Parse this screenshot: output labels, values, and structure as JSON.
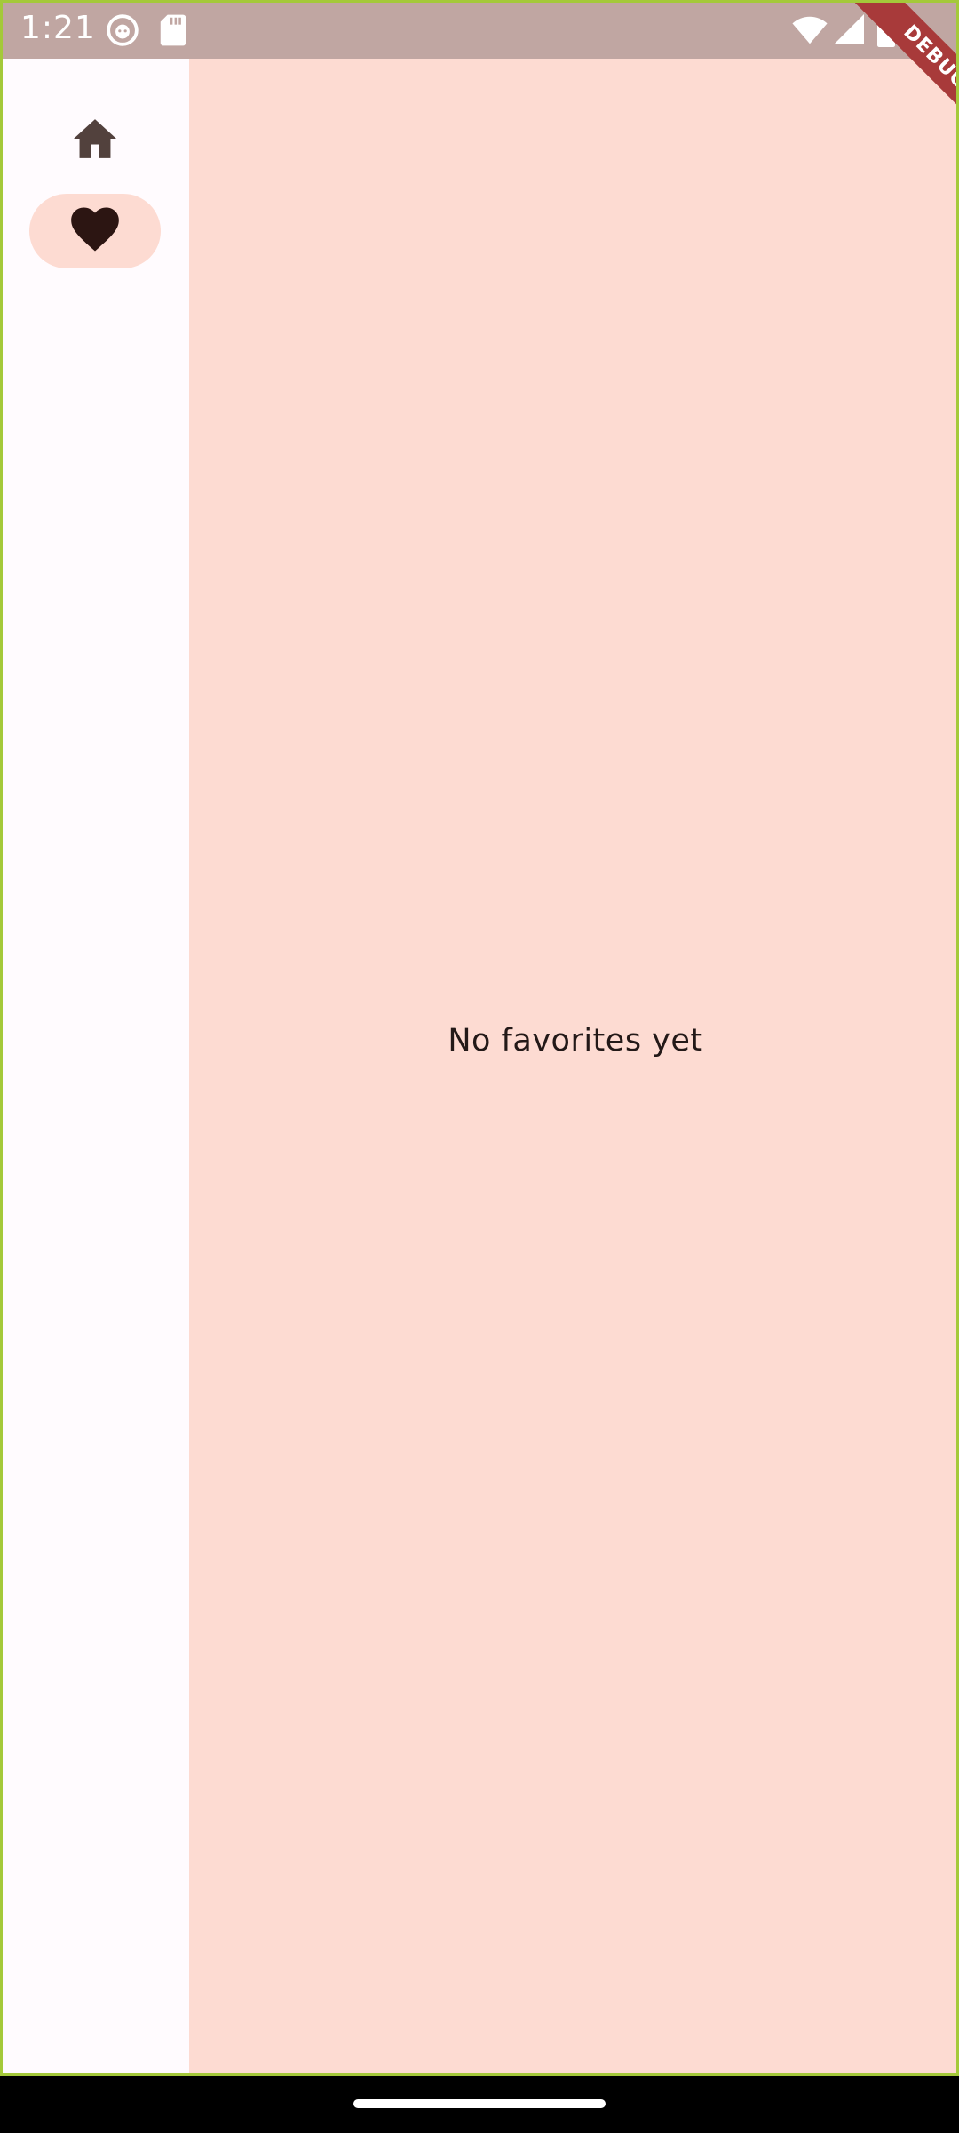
{
  "status_bar": {
    "time": "1:21",
    "left_icons": [
      "face-notification-icon",
      "sd-card-icon"
    ],
    "right_icons": [
      "wifi-icon",
      "signal-icon",
      "battery-icon"
    ]
  },
  "debug_banner": {
    "label": "DEBUG"
  },
  "nav_rail": {
    "destinations": [
      {
        "icon": "home-icon",
        "selected": false
      },
      {
        "icon": "heart-icon",
        "selected": true
      }
    ]
  },
  "content": {
    "empty_message": "No favorites yet"
  },
  "colors": {
    "content_background": "#fddbd2",
    "rail_background": "#fffbfe",
    "status_bar": "#c0a6a2",
    "icon_home": "#52413d",
    "icon_selected": "#2c1512",
    "text": "#231918",
    "debug_ribbon": "#a83a3a"
  }
}
